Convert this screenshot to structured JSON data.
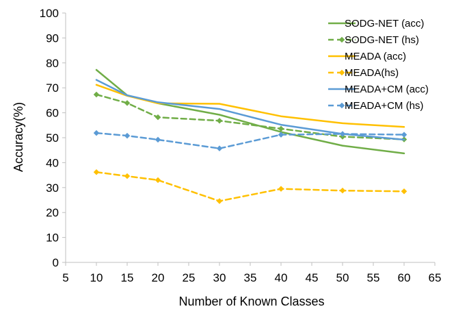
{
  "chart_data": {
    "type": "line",
    "title": "",
    "xlabel": "Number of Known Classes",
    "ylabel": "Accuracy(%)",
    "xlim": [
      5,
      65
    ],
    "ylim": [
      0,
      100
    ],
    "xticks": [
      5,
      10,
      15,
      20,
      25,
      30,
      35,
      40,
      45,
      50,
      55,
      60,
      65
    ],
    "yticks": [
      0,
      10,
      20,
      30,
      40,
      50,
      60,
      70,
      80,
      90,
      100
    ],
    "grid": false,
    "legend_position": "top-right",
    "x": [
      10,
      15,
      20,
      30,
      40,
      50,
      60
    ],
    "series": [
      {
        "name": "SODG-NET (acc)",
        "values": [
          77.2,
          67.0,
          63.8,
          59.2,
          52.3,
          46.8,
          43.7
        ],
        "color": "#70ad47",
        "dash": "solid",
        "markers": false
      },
      {
        "name": "SODG-NET (hs)",
        "values": [
          67.3,
          63.9,
          58.2,
          56.8,
          53.6,
          50.4,
          49.3
        ],
        "color": "#70ad47",
        "dash": "dashed",
        "markers": true
      },
      {
        "name": "MEADA (acc)",
        "values": [
          71.2,
          66.8,
          63.8,
          63.6,
          58.6,
          55.8,
          54.3
        ],
        "color": "#ffc000",
        "dash": "solid",
        "markers": false
      },
      {
        "name": "MEADA(hs)",
        "values": [
          36.2,
          34.6,
          33.0,
          24.6,
          29.5,
          28.8,
          28.5
        ],
        "color": "#ffc000",
        "dash": "dashed",
        "markers": true
      },
      {
        "name": "MEADA+CM (acc)",
        "values": [
          73.2,
          67.0,
          64.2,
          61.5,
          55.2,
          51.5,
          49.2
        ],
        "color": "#5b9bd5",
        "dash": "solid",
        "markers": false
      },
      {
        "name": "MEADA+CM (hs)",
        "values": [
          51.9,
          50.8,
          49.2,
          45.7,
          51.2,
          51.5,
          51.2
        ],
        "color": "#5b9bd5",
        "dash": "dashed",
        "markers": true
      }
    ]
  }
}
